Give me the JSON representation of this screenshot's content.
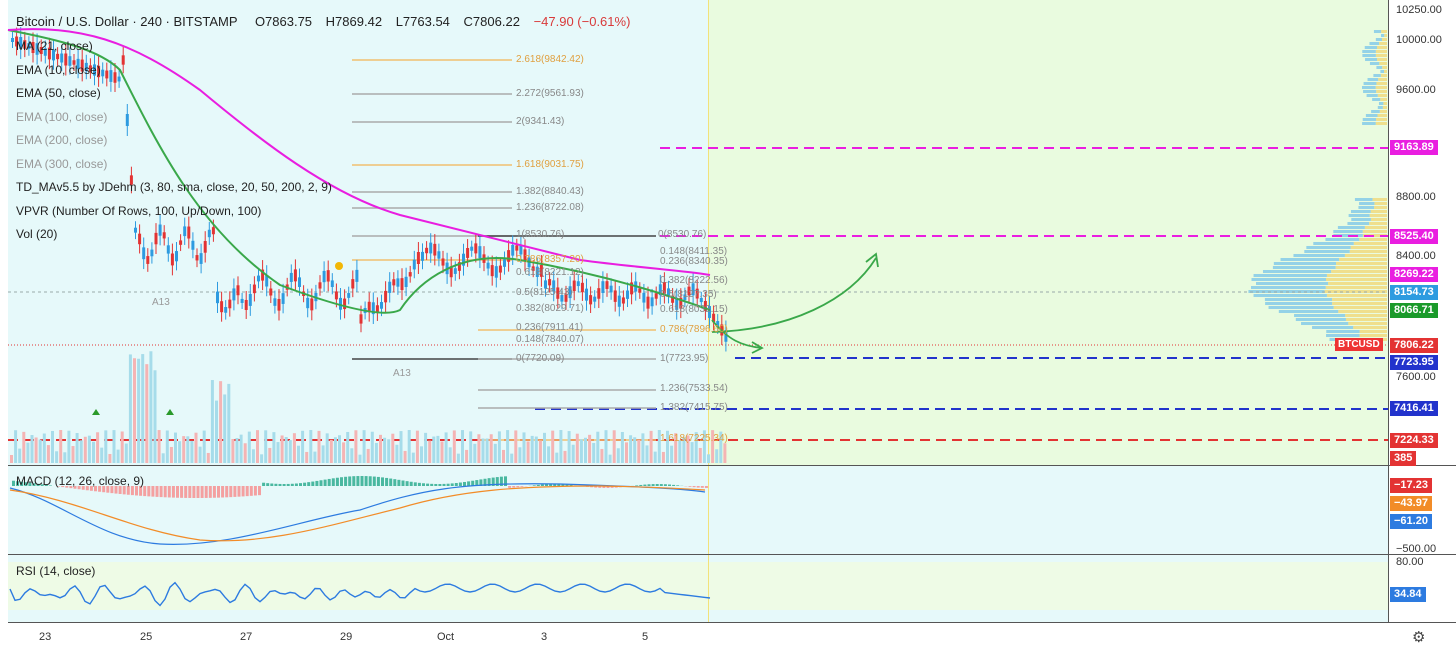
{
  "header": {
    "symbol": "Bitcoin / U.S. Dollar · 240 · BITSTAMP",
    "open": "O7863.75",
    "high": "H7869.42",
    "low": "L7763.54",
    "close": "C7806.22",
    "change": "−47.90 (−0.61%)"
  },
  "indicators": [
    {
      "label": "MA (21, close)",
      "dim": false
    },
    {
      "label": "EMA (10, close)",
      "dim": false
    },
    {
      "label": "EMA (50, close)",
      "dim": false
    },
    {
      "label": "EMA (100, close)",
      "dim": true
    },
    {
      "label": "EMA (200, close)",
      "dim": true
    },
    {
      "label": "EMA (300, close)",
      "dim": true
    },
    {
      "label": "TD_MAv5.5 by JDehm (3, 80, sma, close, 20, 50, 200, 2, 9)",
      "dim": false
    },
    {
      "label": "VPVR (Number Of Rows, 100, Up/Down, 100)",
      "dim": false
    },
    {
      "label": "Vol (20)",
      "dim": false
    }
  ],
  "price_axis": {
    "labels": [
      "10250.00",
      "10000.00",
      "9600.00",
      "8800.00",
      "8400.00",
      "7600.00"
    ],
    "tags": [
      {
        "text": "9163.89",
        "color": "#e91ee0"
      },
      {
        "text": "8525.40",
        "color": "#e91ee0"
      },
      {
        "text": "8269.22",
        "color": "#e91ee0"
      },
      {
        "text": "8154.73",
        "color": "#2d9be0"
      },
      {
        "text": "8066.71",
        "color": "#1a9a2a"
      },
      {
        "text": "7806.22",
        "color": "#e33333"
      },
      {
        "text": "7723.95",
        "color": "#2233cc"
      },
      {
        "text": "7416.41",
        "color": "#2233cc"
      },
      {
        "text": "7224.33",
        "color": "#e33333"
      },
      {
        "text": "385",
        "color": "#e33333"
      }
    ],
    "symbol_tag": "BTCUSD"
  },
  "fib_left": [
    {
      "text": "2.618(9842.42)",
      "orange": true
    },
    {
      "text": "2.272(9561.93)",
      "orange": false
    },
    {
      "text": "2(9341.43)",
      "orange": false
    },
    {
      "text": "1.618(9031.75)",
      "orange": true
    },
    {
      "text": "1.382(8840.43)",
      "orange": false
    },
    {
      "text": "1.236(8722.08)",
      "orange": false
    },
    {
      "text": "1(8530.76)",
      "orange": false
    },
    {
      "text": "0.786(8357.20)",
      "orange": true
    },
    {
      "text": "0.618(8221.12)",
      "orange": false
    },
    {
      "text": "0.5(8125.43)",
      "orange": false
    },
    {
      "text": "0.382(8029.71)",
      "orange": false
    },
    {
      "text": "0.236(7911.41)",
      "orange": false
    },
    {
      "text": "0.148(7840.07)",
      "orange": false
    },
    {
      "text": "0(7720.09)",
      "orange": false
    }
  ],
  "fib_right": [
    {
      "text": "0(8530.76)",
      "orange": false
    },
    {
      "text": "0.148(8411.35)",
      "orange": false
    },
    {
      "text": "0.236(8340.35)",
      "orange": false
    },
    {
      "text": "0.382(8222.56)",
      "orange": false
    },
    {
      "text": "0.5(8127.35)",
      "orange": false
    },
    {
      "text": "0.618(8032.15)",
      "orange": false
    },
    {
      "text": "0.786(7896.60)",
      "orange": true
    },
    {
      "text": "1(7723.95)",
      "orange": false
    },
    {
      "text": "1.236(7533.54)",
      "orange": false
    },
    {
      "text": "1.382(7415.75)",
      "orange": false
    },
    {
      "text": "1.618(7225.34)",
      "orange": true
    }
  ],
  "annotations": {
    "a13_1": "A13",
    "a13_2": "A13"
  },
  "macd": {
    "label": "MACD (12, 26, close, 9)",
    "values": [
      {
        "text": "−17.23",
        "color": "#e33333"
      },
      {
        "text": "−43.97",
        "color": "#f28c28"
      },
      {
        "text": "−61.20",
        "color": "#2d7be0"
      }
    ],
    "axis": "−500.00"
  },
  "rsi": {
    "label": "RSI (14, close)",
    "upper": "80.00",
    "value": "34.84",
    "value_color": "#2d7be0"
  },
  "time_axis": [
    "23",
    "25",
    "27",
    "29",
    "Oct",
    "3",
    "5"
  ]
}
